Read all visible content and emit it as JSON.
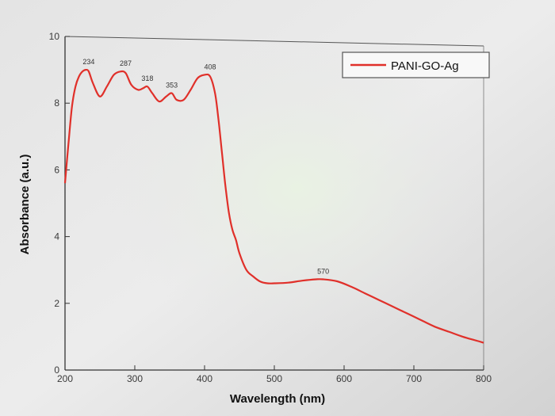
{
  "chart_data": {
    "type": "line",
    "xlabel": "Wavelength (nm)",
    "ylabel": "Absorbance (a.u.)",
    "xlim": [
      200,
      800
    ],
    "ylim": [
      0,
      10
    ],
    "xticks": [
      200,
      300,
      400,
      500,
      600,
      700,
      800
    ],
    "yticks": [
      0,
      2,
      4,
      6,
      8,
      10
    ],
    "grid": false,
    "legend_position": "top-right",
    "series": [
      {
        "name": "PANI-GO-Ag",
        "color": "#e0302a",
        "x": [
          200,
          205,
          210,
          215,
          220,
          225,
          230,
          234,
          240,
          250,
          260,
          270,
          280,
          287,
          295,
          305,
          312,
          318,
          325,
          335,
          345,
          353,
          360,
          370,
          380,
          390,
          400,
          408,
          415,
          420,
          425,
          430,
          435,
          440,
          445,
          450,
          460,
          470,
          480,
          490,
          500,
          520,
          540,
          560,
          570,
          590,
          610,
          630,
          650,
          670,
          690,
          710,
          730,
          750,
          770,
          790,
          800
        ],
        "y": [
          5.6,
          6.8,
          7.9,
          8.5,
          8.8,
          8.95,
          9.0,
          8.95,
          8.6,
          8.2,
          8.5,
          8.85,
          8.95,
          8.9,
          8.55,
          8.4,
          8.45,
          8.5,
          8.3,
          8.05,
          8.2,
          8.3,
          8.1,
          8.1,
          8.4,
          8.75,
          8.85,
          8.8,
          8.3,
          7.5,
          6.5,
          5.5,
          4.7,
          4.2,
          3.9,
          3.5,
          3.0,
          2.8,
          2.65,
          2.6,
          2.6,
          2.62,
          2.68,
          2.72,
          2.72,
          2.66,
          2.5,
          2.3,
          2.1,
          1.9,
          1.7,
          1.5,
          1.3,
          1.15,
          1.0,
          0.88,
          0.82
        ]
      }
    ],
    "annotations": [
      {
        "text": "234",
        "x": 234,
        "y": 9.0
      },
      {
        "text": "287",
        "x": 287,
        "y": 8.95
      },
      {
        "text": "318",
        "x": 318,
        "y": 8.5
      },
      {
        "text": "353",
        "x": 353,
        "y": 8.3
      },
      {
        "text": "408",
        "x": 408,
        "y": 8.85
      },
      {
        "text": "570",
        "x": 570,
        "y": 2.72
      }
    ]
  }
}
